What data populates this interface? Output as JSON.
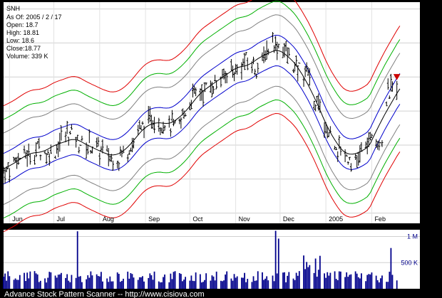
{
  "chart_data": {
    "type": "line",
    "ticker": "SNH",
    "info": {
      "as_of": "As Of: 2005 / 2 / 17",
      "open": "Open: 18.7",
      "high": "High: 18.81",
      "low": "Low: 18.6",
      "close": "Close:18.77",
      "volume": "Volume: 339 K"
    },
    "y_ticks": [
      15,
      16,
      17,
      18,
      19,
      20,
      21
    ],
    "ylim": [
      14.7,
      21.2
    ],
    "x_ticks": [
      {
        "label": "Jun",
        "day": 4
      },
      {
        "label": "Jul",
        "day": 34
      },
      {
        "label": "Aug",
        "day": 65
      },
      {
        "label": "Sep",
        "day": 96
      },
      {
        "label": "Oct",
        "day": 126
      },
      {
        "label": "Nov",
        "day": 157
      },
      {
        "label": "Dec",
        "day": 187
      },
      {
        "label": "2005",
        "day": 218
      },
      {
        "label": "Feb",
        "day": 249
      }
    ],
    "xlim": [
      0,
      270
    ],
    "volume_ticks": [
      {
        "label": "1 M",
        "value": 1000
      },
      {
        "label": "500 K",
        "value": 500
      }
    ],
    "volume_max": 1130,
    "price_anchors": [
      [
        0,
        16.2
      ],
      [
        10,
        16.6
      ],
      [
        25,
        16.9
      ],
      [
        33,
        16.7
      ],
      [
        42,
        17.4
      ],
      [
        50,
        17.1
      ],
      [
        58,
        17.0
      ],
      [
        66,
        16.8
      ],
      [
        75,
        16.6
      ],
      [
        82,
        16.7
      ],
      [
        90,
        17.3
      ],
      [
        100,
        17.8
      ],
      [
        110,
        17.6
      ],
      [
        118,
        17.5
      ],
      [
        126,
        18.3
      ],
      [
        135,
        18.6
      ],
      [
        145,
        18.9
      ],
      [
        155,
        19.2
      ],
      [
        165,
        19.5
      ],
      [
        172,
        19.2
      ],
      [
        180,
        20.0
      ],
      [
        188,
        19.9
      ],
      [
        195,
        19.4
      ],
      [
        205,
        19.1
      ],
      [
        212,
        18.2
      ],
      [
        218,
        17.5
      ],
      [
        225,
        17.0
      ],
      [
        232,
        16.7
      ],
      [
        238,
        16.4
      ],
      [
        243,
        16.9
      ],
      [
        250,
        17.2
      ],
      [
        256,
        17.2
      ],
      [
        260,
        18.5
      ],
      [
        266,
        18.77
      ]
    ],
    "band_offsets": [
      -1.85,
      -1.45,
      -1.05,
      -0.45,
      0.45,
      1.05,
      1.45,
      1.85
    ],
    "band_colors": [
      "#e00000",
      "#00b000",
      "#808080",
      "#0000cc",
      "#0000cc",
      "#808080",
      "#00b000",
      "#e00000"
    ],
    "colors": {
      "bars": "#000000",
      "center": "#000000",
      "volume": "#00008b",
      "signal": "#cc0000"
    }
  },
  "footer": "Advance Stock Pattern Scanner -- http://www.cisiova.com"
}
